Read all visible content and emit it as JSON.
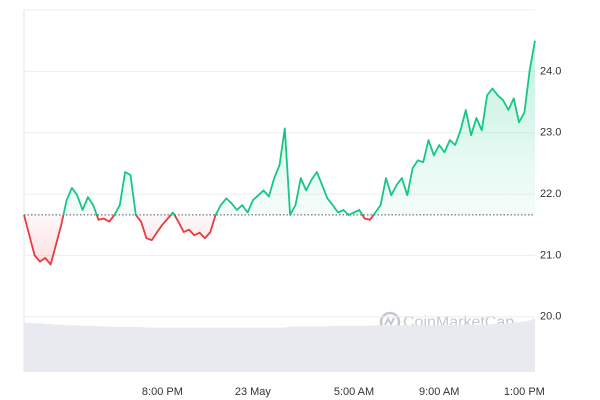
{
  "chart_data": {
    "type": "line",
    "watermark": "CoinMarketCap",
    "categories": [
      null,
      null,
      null,
      null,
      null,
      null,
      null,
      null,
      null,
      null,
      null,
      null,
      null,
      null,
      null,
      null,
      null,
      null,
      null,
      null,
      null,
      null,
      null,
      null,
      null,
      null,
      "8:00 PM",
      null,
      null,
      null,
      null,
      null,
      null,
      null,
      null,
      null,
      null,
      null,
      null,
      null,
      null,
      null,
      null,
      "23 May",
      null,
      null,
      null,
      null,
      null,
      null,
      null,
      null,
      null,
      null,
      null,
      null,
      null,
      null,
      null,
      null,
      null,
      null,
      "5:00 AM",
      null,
      null,
      null,
      null,
      null,
      null,
      null,
      null,
      null,
      null,
      null,
      null,
      null,
      null,
      null,
      "9:00 AM",
      null,
      null,
      null,
      null,
      null,
      null,
      null,
      null,
      null,
      null,
      null,
      null,
      null,
      null,
      null,
      "1:00 PM",
      null,
      null
    ],
    "values": [
      21.66,
      21.33,
      21.0,
      20.9,
      20.96,
      20.85,
      21.17,
      21.5,
      21.9,
      22.1,
      21.98,
      21.74,
      21.95,
      21.82,
      21.58,
      21.6,
      21.55,
      21.66,
      21.82,
      22.36,
      22.31,
      21.66,
      21.55,
      21.28,
      21.25,
      21.38,
      21.5,
      21.6,
      21.7,
      21.55,
      21.38,
      21.42,
      21.33,
      21.37,
      21.28,
      21.38,
      21.66,
      21.82,
      21.93,
      21.85,
      21.74,
      21.82,
      21.7,
      21.9,
      21.98,
      22.06,
      21.96,
      22.26,
      22.47,
      23.07,
      21.66,
      21.82,
      22.26,
      22.06,
      22.23,
      22.36,
      22.15,
      21.93,
      21.82,
      21.7,
      21.74,
      21.66,
      21.7,
      21.74,
      21.6,
      21.58,
      21.7,
      21.82,
      22.26,
      21.98,
      22.15,
      22.26,
      21.98,
      22.42,
      22.55,
      22.52,
      22.88,
      22.63,
      22.8,
      22.68,
      22.88,
      22.8,
      23.04,
      23.37,
      22.96,
      23.24,
      23.04,
      23.61,
      23.72,
      23.61,
      23.53,
      23.37,
      23.56,
      23.17,
      23.33,
      24.02,
      24.5
    ],
    "volume": [
      82,
      82,
      81,
      81,
      80,
      80,
      79,
      79,
      78,
      78,
      78,
      77,
      77,
      77,
      76,
      76,
      76,
      75,
      75,
      75,
      75,
      75,
      75,
      74,
      74,
      74,
      74,
      74,
      74,
      74,
      74,
      74,
      74,
      74,
      74,
      74,
      74,
      74,
      74,
      74,
      74,
      74,
      74,
      74,
      74,
      74,
      74,
      74,
      74,
      74,
      76,
      76,
      76,
      76,
      76,
      76,
      76,
      76,
      77,
      77,
      77,
      77,
      77,
      77,
      77,
      77,
      78,
      78,
      78,
      78,
      78,
      78,
      78,
      78,
      78,
      78,
      78,
      78,
      78,
      78,
      79,
      79,
      79,
      79,
      79,
      79,
      79,
      79,
      80,
      80,
      80,
      81,
      82,
      83,
      84,
      86,
      90
    ],
    "baseline": 21.66,
    "up_color": "#16c784",
    "down_color": "#ea3943",
    "volume_color": "#e8eaf0",
    "ylim": [
      19.1,
      25.0
    ],
    "yticks": [
      {
        "value": 20,
        "label": "20.0"
      },
      {
        "value": 21,
        "label": "21.0"
      },
      {
        "value": 22,
        "label": "22.0"
      },
      {
        "value": 23,
        "label": "23.0"
      },
      {
        "value": 24,
        "label": "24.0"
      }
    ],
    "grid": true
  }
}
